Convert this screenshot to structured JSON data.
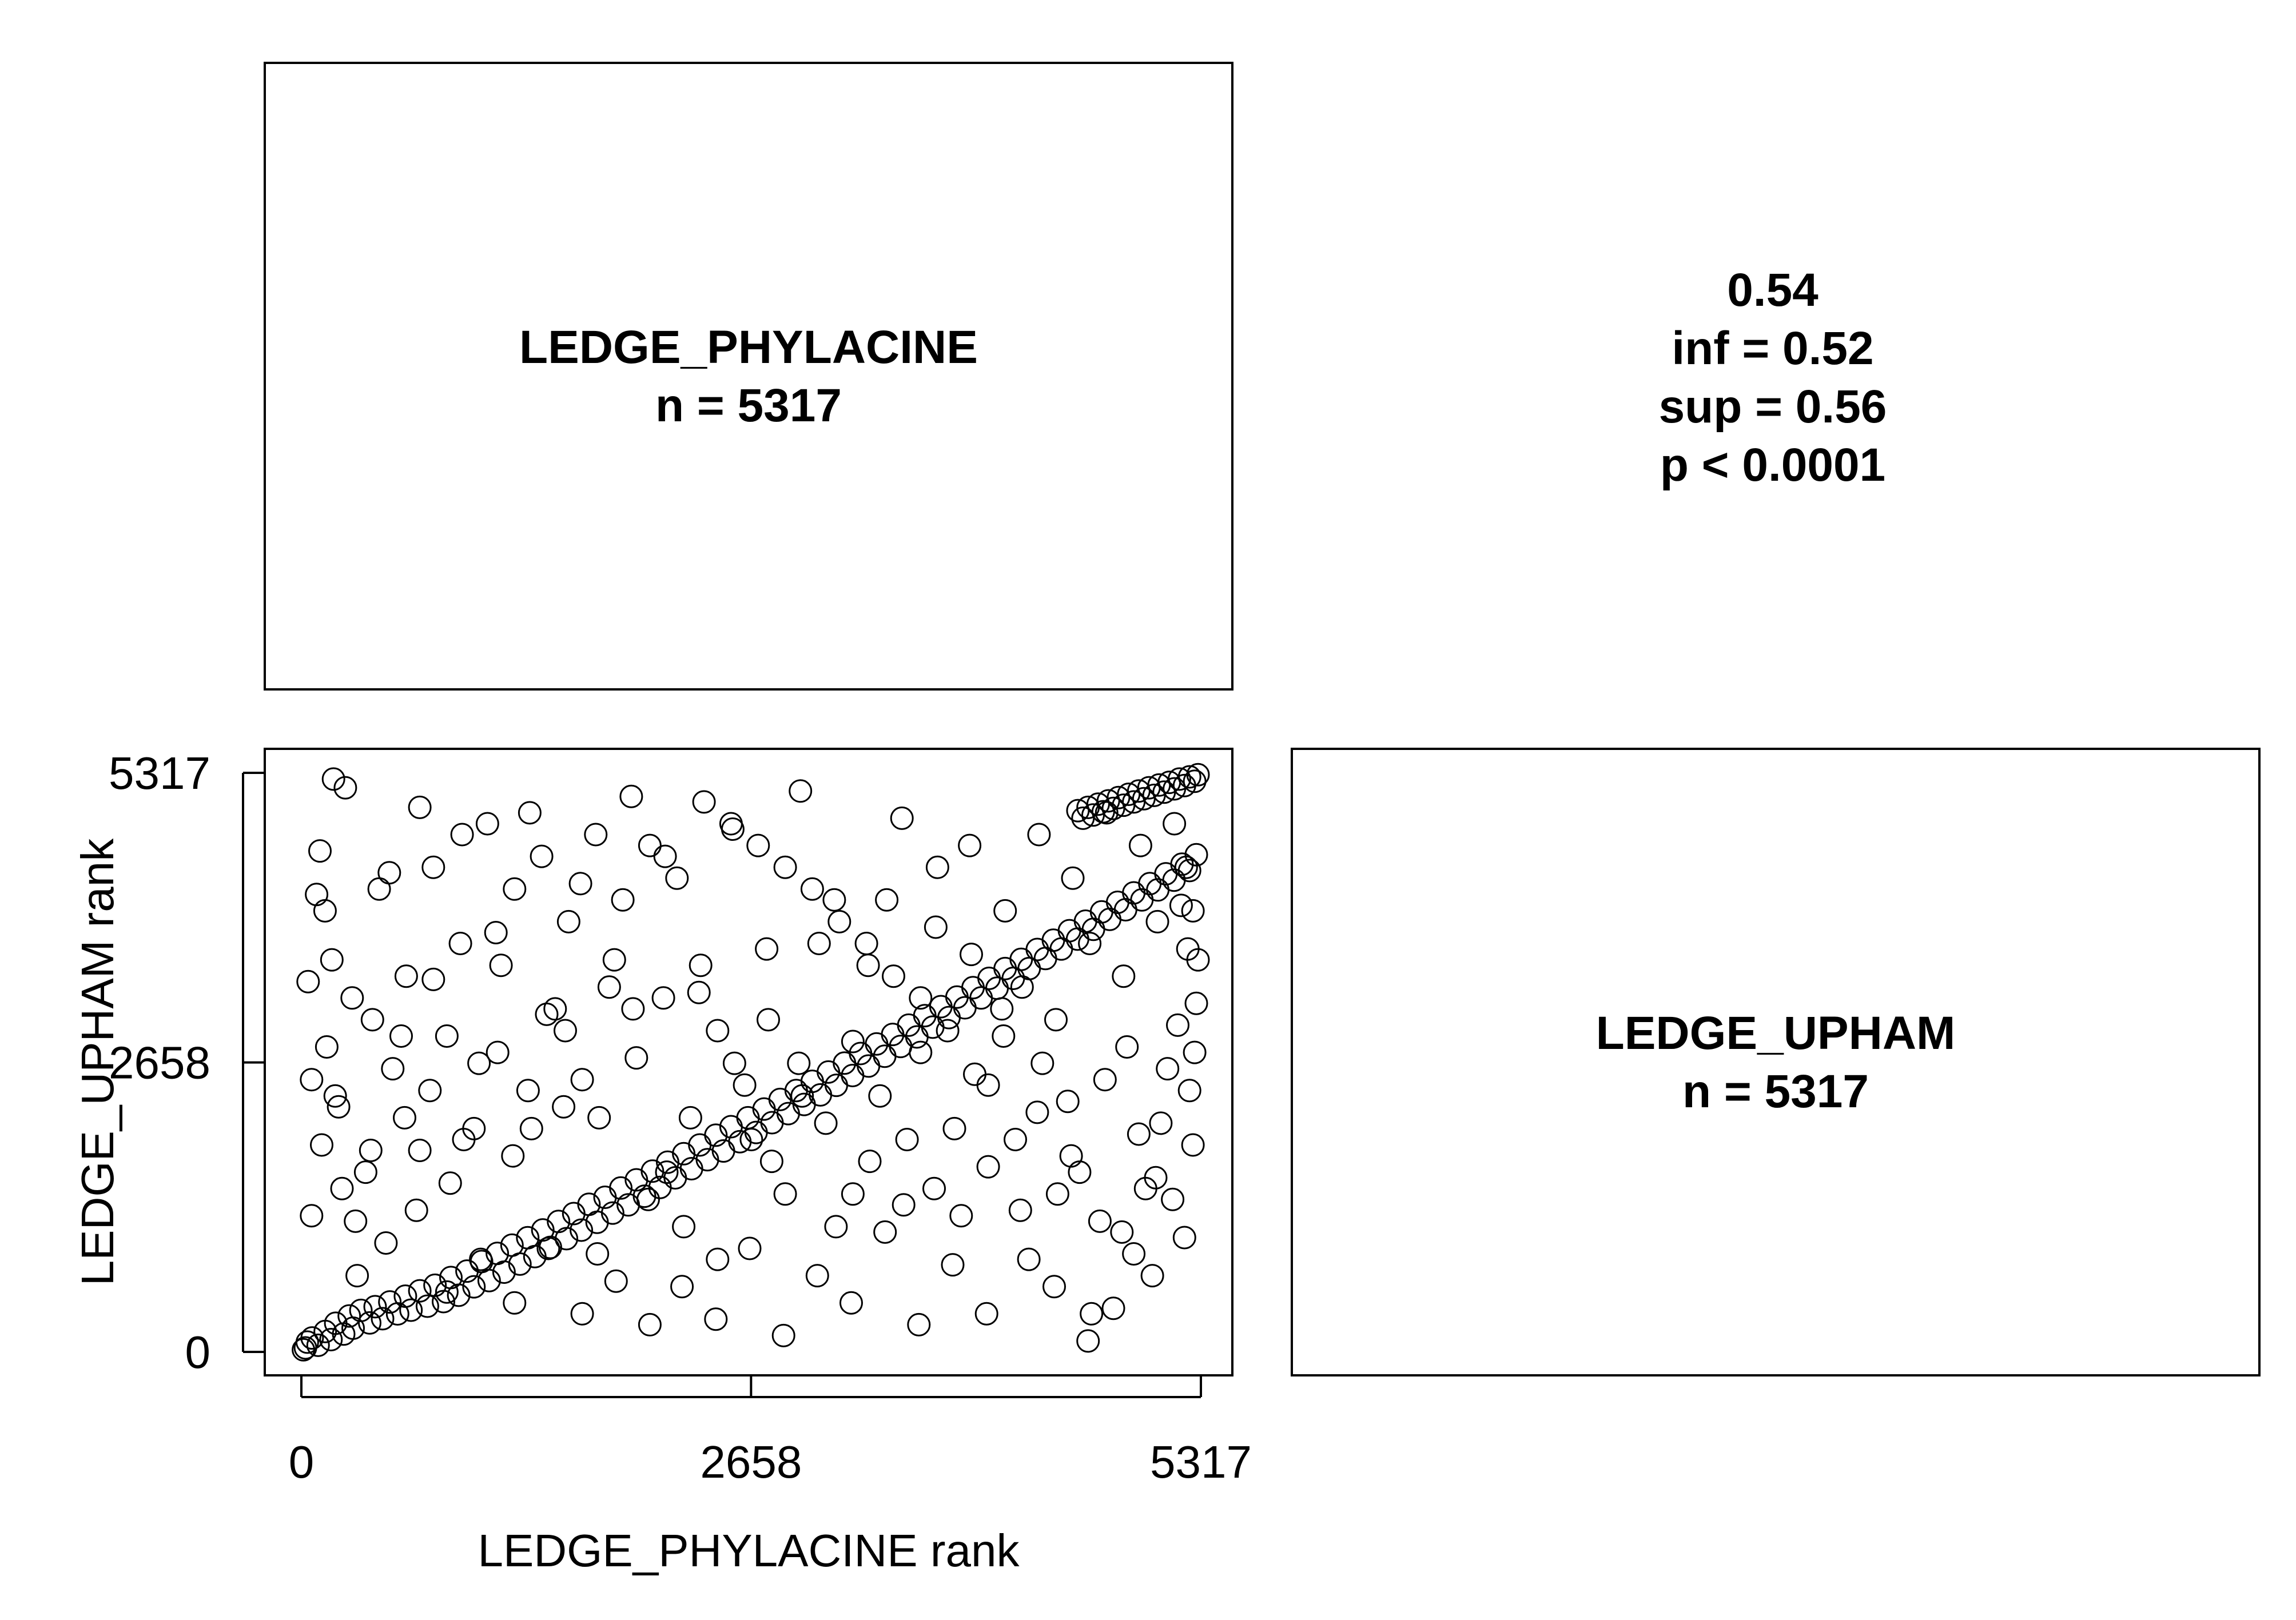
{
  "panels": {
    "top_left": {
      "line1": "LEDGE_PHYLACINE",
      "line2": "n =  5317"
    },
    "top_right": {
      "line1": "0.54",
      "line2": "inf =  0.52",
      "line3": "sup =  0.56",
      "line4": "p < 0.0001"
    },
    "bottom_right": {
      "line1": "LEDGE_UPHAM",
      "line2": "n =  5317"
    }
  },
  "chart_data": {
    "type": "scatter",
    "xlabel": "LEDGE_PHYLACINE rank",
    "ylabel": "LEDGE_UPHAM rank",
    "xlim": [
      0,
      5317
    ],
    "ylim": [
      0,
      5317
    ],
    "x_ticks": [
      0,
      2658,
      5317
    ],
    "y_ticks": [
      0,
      2658,
      5317
    ],
    "x_tick_labels": [
      "0",
      "2658",
      "5317"
    ],
    "y_tick_labels": [
      "0",
      "2658",
      "5317"
    ],
    "marker": "open-circle",
    "n_points": 5317,
    "rank_correlation": 0.54,
    "point_color": "#000000",
    "grid": false,
    "points": [
      [
        24,
        37
      ],
      [
        35,
        90
      ],
      [
        12,
        20
      ],
      [
        64,
        128
      ],
      [
        99,
        61
      ],
      [
        141,
        188
      ],
      [
        175,
        113
      ],
      [
        203,
        263
      ],
      [
        250,
        164
      ],
      [
        283,
        330
      ],
      [
        306,
        218
      ],
      [
        352,
        381
      ],
      [
        404,
        266
      ],
      [
        436,
        415
      ],
      [
        480,
        305
      ],
      [
        523,
        459
      ],
      [
        569,
        349
      ],
      [
        615,
        512
      ],
      [
        648,
        383
      ],
      [
        700,
        561
      ],
      [
        745,
        420
      ],
      [
        790,
        612
      ],
      [
        840,
        462
      ],
      [
        884,
        683
      ],
      [
        930,
        520
      ],
      [
        979,
        742
      ],
      [
        1020,
        598
      ],
      [
        1065,
        830
      ],
      [
        1110,
        655
      ],
      [
        1158,
        905
      ],
      [
        1198,
        732
      ],
      [
        1245,
        980
      ],
      [
        1292,
        806
      ],
      [
        1338,
        1048
      ],
      [
        1380,
        875
      ],
      [
        1427,
        1120
      ],
      [
        1472,
        960
      ],
      [
        1520,
        1198
      ],
      [
        1567,
        1040
      ],
      [
        1610,
        1270
      ],
      [
        1655,
        1118
      ],
      [
        1700,
        1355
      ],
      [
        1748,
        1190
      ],
      [
        1795,
        1420
      ],
      [
        1840,
        1275
      ],
      [
        1888,
        1505
      ],
      [
        1932,
        1350
      ],
      [
        1980,
        1580
      ],
      [
        2028,
        1430
      ],
      [
        2075,
        1660
      ],
      [
        2120,
        1510
      ],
      [
        2165,
        1742
      ],
      [
        2210,
        1598
      ],
      [
        2260,
        1820
      ],
      [
        2306,
        1682
      ],
      [
        2355,
        1900
      ],
      [
        2400,
        1765
      ],
      [
        2450,
        1990
      ],
      [
        2495,
        1845
      ],
      [
        2540,
        2068
      ],
      [
        2592,
        1930
      ],
      [
        2640,
        2150
      ],
      [
        2688,
        2015
      ],
      [
        2735,
        2230
      ],
      [
        2782,
        2105
      ],
      [
        2830,
        2318
      ],
      [
        2878,
        2188
      ],
      [
        2925,
        2400
      ],
      [
        2972,
        2272
      ],
      [
        3020,
        2485
      ],
      [
        3068,
        2360
      ],
      [
        3115,
        2570
      ],
      [
        3162,
        2448
      ],
      [
        3210,
        2652
      ],
      [
        3258,
        2538
      ],
      [
        3305,
        2740
      ],
      [
        3352,
        2625
      ],
      [
        3400,
        2828
      ],
      [
        3448,
        2715
      ],
      [
        3495,
        2915
      ],
      [
        3542,
        2805
      ],
      [
        3590,
        3000
      ],
      [
        3638,
        2892
      ],
      [
        3685,
        3088
      ],
      [
        3732,
        2982
      ],
      [
        3780,
        3170
      ],
      [
        3828,
        3070
      ],
      [
        3875,
        3258
      ],
      [
        3922,
        3160
      ],
      [
        3970,
        3345
      ],
      [
        4018,
        3250
      ],
      [
        4065,
        3430
      ],
      [
        4112,
        3340
      ],
      [
        4160,
        3520
      ],
      [
        4208,
        3430
      ],
      [
        4255,
        3605
      ],
      [
        4302,
        3520
      ],
      [
        4350,
        3695
      ],
      [
        4398,
        3612
      ],
      [
        4445,
        3780
      ],
      [
        4492,
        3700
      ],
      [
        4540,
        3868
      ],
      [
        4588,
        3790
      ],
      [
        4635,
        3955
      ],
      [
        4682,
        3880
      ],
      [
        4730,
        4040
      ],
      [
        4778,
        3972
      ],
      [
        4825,
        4128
      ],
      [
        4872,
        4060
      ],
      [
        4920,
        4215
      ],
      [
        4968,
        4150
      ],
      [
        5015,
        4300
      ],
      [
        5062,
        4242
      ],
      [
        5110,
        4390
      ],
      [
        5158,
        4332
      ],
      [
        5205,
        4478
      ],
      [
        5250,
        4420
      ],
      [
        5290,
        4565
      ],
      [
        5300,
        5300
      ],
      [
        5280,
        5240
      ],
      [
        5250,
        5280
      ],
      [
        5220,
        5200
      ],
      [
        5190,
        5260
      ],
      [
        5160,
        5170
      ],
      [
        5130,
        5230
      ],
      [
        5100,
        5140
      ],
      [
        5070,
        5205
      ],
      [
        5040,
        5110
      ],
      [
        5010,
        5180
      ],
      [
        4980,
        5080
      ],
      [
        4950,
        5150
      ],
      [
        4920,
        5050
      ],
      [
        4890,
        5120
      ],
      [
        4860,
        5020
      ],
      [
        4830,
        5090
      ],
      [
        4800,
        4990
      ],
      [
        4770,
        5060
      ],
      [
        4740,
        4960
      ],
      [
        4710,
        5030
      ],
      [
        4680,
        4930
      ],
      [
        4650,
        5000
      ],
      [
        4620,
        4900
      ],
      [
        4590,
        4970
      ],
      [
        200,
        2350
      ],
      [
        120,
        1900
      ],
      [
        320,
        1200
      ],
      [
        180,
        3600
      ],
      [
        90,
        4200
      ],
      [
        260,
        5180
      ],
      [
        150,
        2800
      ],
      [
        60,
        2500
      ],
      [
        420,
        3050
      ],
      [
        520,
        4400
      ],
      [
        610,
        2150
      ],
      [
        700,
        5000
      ],
      [
        780,
        3420
      ],
      [
        880,
        1550
      ],
      [
        950,
        4750
      ],
      [
        1050,
        2650
      ],
      [
        1150,
        3850
      ],
      [
        1250,
        1800
      ],
      [
        1350,
        4950
      ],
      [
        1450,
        3100
      ],
      [
        1550,
        2250
      ],
      [
        1650,
        4300
      ],
      [
        1750,
        900
      ],
      [
        1850,
        3600
      ],
      [
        1950,
        5100
      ],
      [
        2050,
        1400
      ],
      [
        2150,
        4550
      ],
      [
        2250,
        600
      ],
      [
        2350,
        3300
      ],
      [
        2450,
        300
      ],
      [
        2550,
        4800
      ],
      [
        2650,
        950
      ],
      [
        2750,
        3700
      ],
      [
        2850,
        150
      ],
      [
        2950,
        5150
      ],
      [
        3050,
        700
      ],
      [
        3150,
        4150
      ],
      [
        3250,
        450
      ],
      [
        3350,
        3550
      ],
      [
        3450,
        1100
      ],
      [
        3550,
        4900
      ],
      [
        3650,
        250
      ],
      [
        3750,
        3900
      ],
      [
        3850,
        800
      ],
      [
        3950,
        4650
      ],
      [
        4050,
        350
      ],
      [
        4150,
        2900
      ],
      [
        4250,
        1300
      ],
      [
        4350,
        2200
      ],
      [
        4450,
        600
      ],
      [
        4550,
        1800
      ],
      [
        4650,
        100
      ],
      [
        4750,
        2500
      ],
      [
        4850,
        1100
      ],
      [
        4950,
        2000
      ],
      [
        5050,
        1600
      ],
      [
        5150,
        1400
      ],
      [
        5250,
        2400
      ],
      [
        5290,
        3200
      ],
      [
        5270,
        1900
      ],
      [
        5220,
        1050
      ],
      [
        5280,
        2750
      ],
      [
        5240,
        3700
      ],
      [
        5200,
        4100
      ],
      [
        5180,
        3000
      ],
      [
        5120,
        2600
      ],
      [
        5080,
        2100
      ],
      [
        5030,
        700
      ],
      [
        4990,
        1500
      ],
      [
        4920,
        900
      ],
      [
        4880,
        2800
      ],
      [
        4800,
        400
      ],
      [
        4720,
        1200
      ],
      [
        4670,
        350
      ],
      [
        4600,
        1650
      ],
      [
        4530,
        2300
      ],
      [
        4470,
        1450
      ],
      [
        4380,
        2650
      ],
      [
        4300,
        850
      ],
      [
        4220,
        1950
      ],
      [
        4140,
        3150
      ],
      [
        4060,
        1700
      ],
      [
        3980,
        2550
      ],
      [
        3900,
        1250
      ],
      [
        3820,
        2950
      ],
      [
        3740,
        1500
      ],
      [
        3660,
        3250
      ],
      [
        3580,
        1950
      ],
      [
        3500,
        3450
      ],
      [
        3420,
        2350
      ],
      [
        3340,
        3750
      ],
      [
        3260,
        1450
      ],
      [
        3180,
        3950
      ],
      [
        3100,
        2100
      ],
      [
        3020,
        4250
      ],
      [
        2940,
        2650
      ],
      [
        2860,
        4450
      ],
      [
        2780,
        1750
      ],
      [
        2700,
        4650
      ],
      [
        2620,
        2450
      ],
      [
        2540,
        4850
      ],
      [
        2460,
        2950
      ],
      [
        2380,
        5050
      ],
      [
        2300,
        2150
      ],
      [
        2220,
        4350
      ],
      [
        2140,
        3250
      ],
      [
        2060,
        4650
      ],
      [
        1980,
        2700
      ],
      [
        1900,
        4150
      ],
      [
        1820,
        3350
      ],
      [
        1740,
        4750
      ],
      [
        1660,
        2500
      ],
      [
        1580,
        3950
      ],
      [
        1500,
        3150
      ],
      [
        1420,
        4550
      ],
      [
        1340,
        2400
      ],
      [
        1260,
        4250
      ],
      [
        1180,
        3550
      ],
      [
        1100,
        4850
      ],
      [
        1020,
        2050
      ],
      [
        940,
        3750
      ],
      [
        860,
        2900
      ],
      [
        780,
        4450
      ],
      [
        700,
        1850
      ],
      [
        620,
        3450
      ],
      [
        540,
        2600
      ],
      [
        460,
        4250
      ],
      [
        380,
        1650
      ],
      [
        300,
        3250
      ],
      [
        220,
        2250
      ],
      [
        140,
        4050
      ],
      [
        60,
        1250
      ],
      [
        40,
        3400
      ],
      [
        110,
        4600
      ],
      [
        190,
        5260
      ],
      [
        240,
        1500
      ],
      [
        330,
        700
      ],
      [
        410,
        1850
      ],
      [
        500,
        1000
      ],
      [
        590,
        2900
      ],
      [
        680,
        1300
      ],
      [
        760,
        2400
      ],
      [
        860,
        550
      ],
      [
        960,
        1950
      ],
      [
        1060,
        850
      ],
      [
        1160,
        2750
      ],
      [
        1260,
        450
      ],
      [
        1360,
        2050
      ],
      [
        1460,
        950
      ],
      [
        1560,
        2950
      ],
      [
        1660,
        350
      ],
      [
        1760,
        2150
      ],
      [
        1860,
        650
      ],
      [
        1960,
        3150
      ],
      [
        2060,
        250
      ],
      [
        2160,
        1650
      ],
      [
        2260,
        1150
      ],
      [
        2360,
        3550
      ],
      [
        2460,
        850
      ],
      [
        2560,
        2650
      ],
      [
        2660,
        1950
      ],
      [
        2760,
        3050
      ],
      [
        2860,
        1450
      ],
      [
        2960,
        2350
      ],
      [
        3060,
        3750
      ],
      [
        3160,
        1150
      ],
      [
        3260,
        2850
      ],
      [
        3360,
        1750
      ],
      [
        3460,
        4150
      ],
      [
        3560,
        1350
      ],
      [
        3660,
        2750
      ],
      [
        3760,
        4450
      ],
      [
        3860,
        2050
      ],
      [
        3960,
        3650
      ],
      [
        4060,
        2450
      ],
      [
        4160,
        4050
      ],
      [
        4260,
        3350
      ],
      [
        4360,
        4750
      ],
      [
        4460,
        3050
      ],
      [
        4560,
        4350
      ],
      [
        4660,
        3750
      ],
      [
        4760,
        4950
      ],
      [
        4860,
        3450
      ],
      [
        4960,
        4650
      ],
      [
        5060,
        3950
      ],
      [
        5160,
        4850
      ],
      [
        5230,
        4450
      ],
      [
        5270,
        4050
      ],
      [
        5300,
        3600
      ]
    ]
  }
}
